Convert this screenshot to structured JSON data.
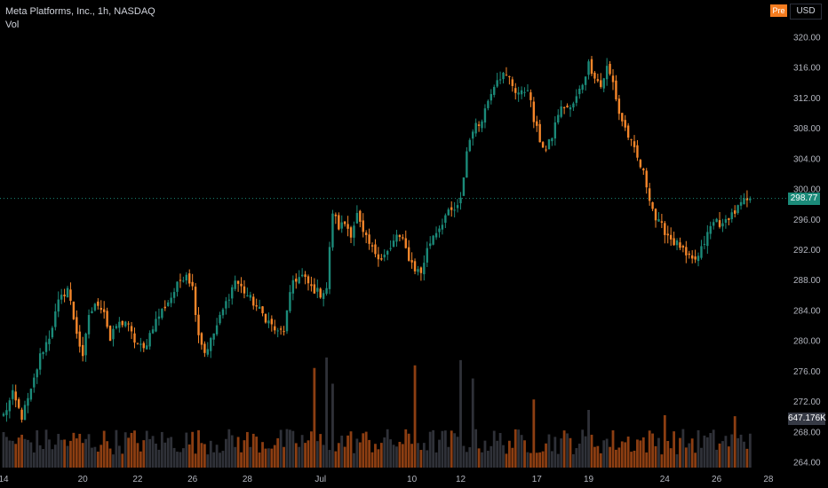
{
  "legend": {
    "symbol": "Meta Platforms, Inc., 1h, NASDAQ",
    "volume_label": "Vol"
  },
  "toolbar": {
    "pre_badge": "Pre",
    "currency": "USD"
  },
  "last_price_label": "298.77",
  "last_volume_label": "647.176K",
  "colors": {
    "background": "#000000",
    "up": "#1b8a79",
    "down": "#f5862a",
    "volume_up": "#2f3138",
    "volume_down": "#8c3e12",
    "axis_text": "#b2b5be",
    "price_line": "#1b8a79"
  },
  "chart_data": {
    "type": "candlestick",
    "y_axis": {
      "min": 264,
      "max": 320,
      "ticks": [
        "320.00",
        "316.00",
        "312.00",
        "308.00",
        "304.00",
        "300.00",
        "296.00",
        "292.00",
        "288.00",
        "284.00",
        "280.00",
        "276.00",
        "272.00",
        "268.00",
        "264.00"
      ]
    },
    "x_axis": {
      "ticks": [
        {
          "label": "14",
          "bar": 0
        },
        {
          "label": "20",
          "bar": 26
        },
        {
          "label": "22",
          "bar": 44
        },
        {
          "label": "26",
          "bar": 62
        },
        {
          "label": "28",
          "bar": 80
        },
        {
          "label": "Jul",
          "bar": 104
        },
        {
          "label": "10",
          "bar": 134
        },
        {
          "label": "12",
          "bar": 150
        },
        {
          "label": "17",
          "bar": 175
        },
        {
          "label": "19",
          "bar": 192
        },
        {
          "label": "24",
          "bar": 217
        },
        {
          "label": "26",
          "bar": 234
        },
        {
          "label": "28",
          "bar": 251
        }
      ]
    },
    "last_price": 298.77,
    "ohlc_anchors": [
      [
        0,
        270.2
      ],
      [
        3,
        272.9
      ],
      [
        6,
        270.0
      ],
      [
        9,
        273.3
      ],
      [
        12,
        278.0
      ],
      [
        15,
        280.6
      ],
      [
        18,
        285.0
      ],
      [
        21,
        287.0
      ],
      [
        23,
        283.0
      ],
      [
        25,
        279.4
      ],
      [
        26,
        277.5
      ],
      [
        28,
        283.5
      ],
      [
        31,
        285.0
      ],
      [
        33,
        284.0
      ],
      [
        35,
        280.0
      ],
      [
        37,
        282.0
      ],
      [
        40,
        282.6
      ],
      [
        43,
        280.0
      ],
      [
        46,
        278.8
      ],
      [
        49,
        282.0
      ],
      [
        52,
        284.0
      ],
      [
        55,
        285.8
      ],
      [
        58,
        288.0
      ],
      [
        60,
        289.0
      ],
      [
        62,
        287.0
      ],
      [
        64,
        281.0
      ],
      [
        66,
        278.5
      ],
      [
        68,
        280.0
      ],
      [
        70,
        282.0
      ],
      [
        72,
        284.0
      ],
      [
        74,
        286.0
      ],
      [
        76,
        288.0
      ],
      [
        78,
        287.0
      ],
      [
        80,
        286.0
      ],
      [
        82,
        285.0
      ],
      [
        84,
        284.0
      ],
      [
        86,
        283.0
      ],
      [
        88,
        282.0
      ],
      [
        90,
        281.0
      ],
      [
        92,
        281.5
      ],
      [
        95,
        288.0
      ],
      [
        98,
        288.5
      ],
      [
        101,
        287.0
      ],
      [
        104,
        286.2
      ],
      [
        106,
        287.0
      ],
      [
        108,
        297.0
      ],
      [
        110,
        295.0
      ],
      [
        112,
        295.5
      ],
      [
        114,
        294.2
      ],
      [
        116,
        296.6
      ],
      [
        118,
        294.0
      ],
      [
        121,
        292.0
      ],
      [
        124,
        291.0
      ],
      [
        127,
        292.0
      ],
      [
        129,
        294.0
      ],
      [
        131,
        293.0
      ],
      [
        133,
        291.0
      ],
      [
        135,
        289.5
      ],
      [
        137,
        289.0
      ],
      [
        139,
        292.0
      ],
      [
        141,
        294.0
      ],
      [
        143,
        295.0
      ],
      [
        145,
        296.5
      ],
      [
        147,
        297.0
      ],
      [
        149,
        297.5
      ],
      [
        150,
        298.5
      ],
      [
        152,
        305.0
      ],
      [
        154,
        308.0
      ],
      [
        156,
        308.5
      ],
      [
        158,
        310.5
      ],
      [
        160,
        313.0
      ],
      [
        162,
        314.8
      ],
      [
        164,
        315.0
      ],
      [
        166,
        314.5
      ],
      [
        168,
        313.0
      ],
      [
        170,
        312.5
      ],
      [
        172,
        313.5
      ],
      [
        174,
        309.0
      ],
      [
        176,
        306.5
      ],
      [
        178,
        305.0
      ],
      [
        180,
        307.0
      ],
      [
        182,
        310.0
      ],
      [
        184,
        311.0
      ],
      [
        186,
        310.5
      ],
      [
        188,
        312.0
      ],
      [
        190,
        314.0
      ],
      [
        192,
        316.5
      ],
      [
        194,
        315.0
      ],
      [
        196,
        313.5
      ],
      [
        198,
        316.0
      ],
      [
        200,
        314.0
      ],
      [
        202,
        310.0
      ],
      [
        204,
        308.0
      ],
      [
        206,
        306.0
      ],
      [
        208,
        304.0
      ],
      [
        210,
        302.0
      ],
      [
        212,
        299.0
      ],
      [
        214,
        296.0
      ],
      [
        216,
        295.0
      ],
      [
        218,
        294.0
      ],
      [
        220,
        293.0
      ],
      [
        222,
        292.5
      ],
      [
        224,
        291.0
      ],
      [
        226,
        290.5
      ],
      [
        228,
        291.0
      ],
      [
        230,
        293.0
      ],
      [
        232,
        295.0
      ],
      [
        234,
        296.0
      ],
      [
        236,
        295.0
      ],
      [
        238,
        296.5
      ],
      [
        240,
        297.0
      ],
      [
        242,
        298.0
      ],
      [
        244,
        298.5
      ],
      [
        245,
        298.77
      ]
    ],
    "volume": {
      "max_display": 2200000,
      "last": 647176,
      "spike_bars": [
        {
          "bar": 102,
          "value": 1900000
        },
        {
          "bar": 106,
          "value": 2100000
        },
        {
          "bar": 108,
          "value": 1600000
        },
        {
          "bar": 135,
          "value": 1950000
        },
        {
          "bar": 150,
          "value": 2050000
        },
        {
          "bar": 154,
          "value": 1700000
        },
        {
          "bar": 174,
          "value": 1300000
        },
        {
          "bar": 192,
          "value": 1100000
        },
        {
          "bar": 217,
          "value": 1000000
        },
        {
          "bar": 240,
          "value": 980000
        }
      ]
    }
  }
}
